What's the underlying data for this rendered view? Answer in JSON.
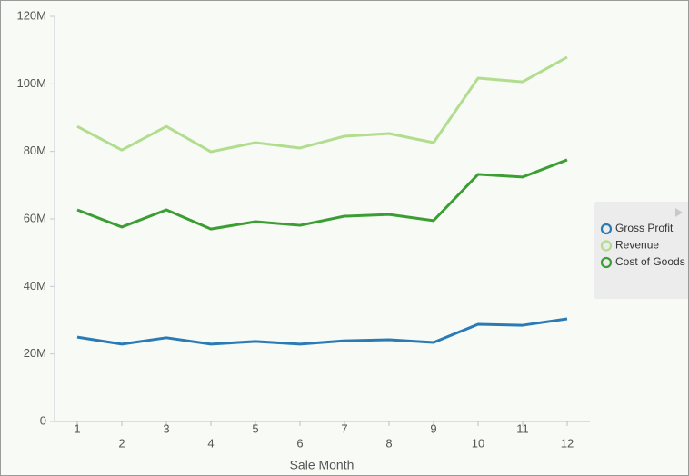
{
  "chart_data": {
    "type": "line",
    "x_label": "Sale Month",
    "categories": [
      "1",
      "2",
      "3",
      "4",
      "5",
      "6",
      "7",
      "8",
      "9",
      "10",
      "11",
      "12"
    ],
    "ylim": [
      0,
      120000000
    ],
    "yticks": [
      0,
      {
        "value": 20000000,
        "label": "20M"
      },
      {
        "value": 40000000,
        "label": "40M"
      },
      {
        "value": 60000000,
        "label": "60M"
      },
      {
        "value": 80000000,
        "label": "80M"
      },
      {
        "value": 100000000,
        "label": "100M"
      },
      {
        "value": 120000000,
        "label": "120M"
      }
    ],
    "legend": "right",
    "series": [
      {
        "name": "Gross Profit",
        "color": "#2a7ab6",
        "values": [
          25000000,
          22900000,
          24800000,
          22900000,
          23700000,
          22900000,
          23900000,
          24200000,
          23400000,
          28800000,
          28500000,
          30400000
        ]
      },
      {
        "name": "Revenue",
        "color": "#b2dd8e",
        "values": [
          87400000,
          80400000,
          87400000,
          79900000,
          82600000,
          81000000,
          84500000,
          85300000,
          82600000,
          101700000,
          100600000,
          107900000
        ]
      },
      {
        "name": "Cost of Goods",
        "color": "#3b9e32",
        "values": [
          62700000,
          57600000,
          62700000,
          57000000,
          59200000,
          58100000,
          60800000,
          61300000,
          59500000,
          73200000,
          72400000,
          77500000
        ]
      }
    ]
  }
}
